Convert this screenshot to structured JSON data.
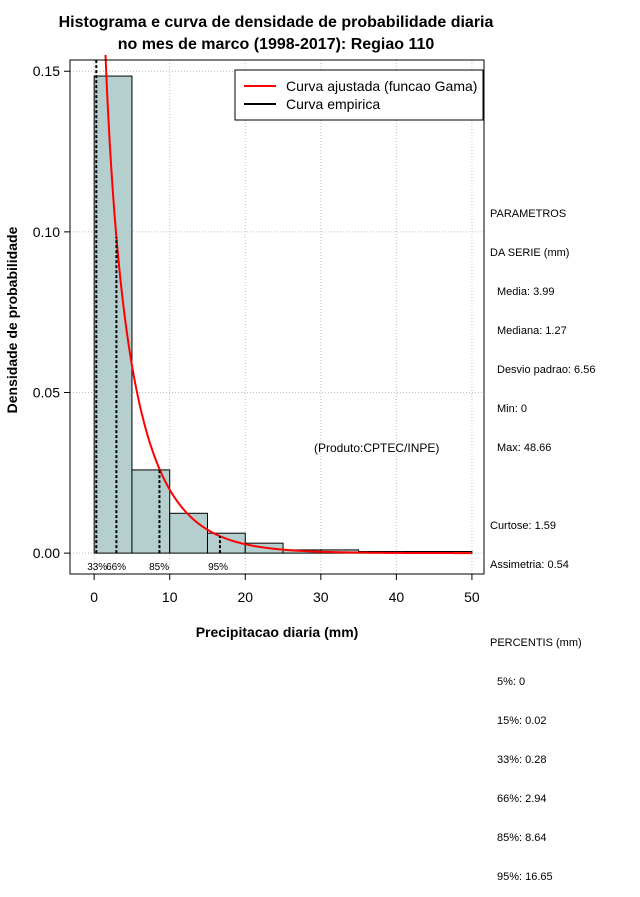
{
  "chart_data": {
    "type": "bar",
    "title_lines": [
      "Histograma e curva de densidade de probabilidade diaria",
      "no mes de marco (1998-2017): Regiao 110"
    ],
    "xlabel": "Precipitacao diaria (mm)",
    "ylabel": "Densidade de probabilidade",
    "xlim": [
      -3.2,
      51.6
    ],
    "ylim": [
      -0.0065,
      0.1535
    ],
    "xticks": [
      0,
      10,
      20,
      30,
      40,
      50
    ],
    "yticks": [
      0.0,
      0.05,
      0.1,
      0.15
    ],
    "ytick_labels": [
      "0.00",
      "0.05",
      "0.10",
      "0.15"
    ],
    "grid": true,
    "bins": [
      {
        "x0": 0,
        "x1": 5,
        "density": 0.1485
      },
      {
        "x0": 5,
        "x1": 10,
        "density": 0.0259
      },
      {
        "x0": 10,
        "x1": 15,
        "density": 0.0124
      },
      {
        "x0": 15,
        "x1": 20,
        "density": 0.0062
      },
      {
        "x0": 20,
        "x1": 25,
        "density": 0.0031
      },
      {
        "x0": 25,
        "x1": 30,
        "density": 0.001
      },
      {
        "x0": 30,
        "x1": 35,
        "density": 0.001
      },
      {
        "x0": 35,
        "x1": 40,
        "density": 0.0005
      },
      {
        "x0": 40,
        "x1": 45,
        "density": 0.0005
      },
      {
        "x0": 45,
        "x1": 50,
        "density": 0.0005
      }
    ],
    "gamma_fit": {
      "shape": 0.7,
      "scale": 5.7
    },
    "percentile_lines": [
      {
        "label": "33%",
        "value": 0.28,
        "label_x": 0.4
      },
      {
        "label": "66%",
        "value": 2.94,
        "label_x": 2.9
      },
      {
        "label": "85%",
        "value": 8.64,
        "label_x": 8.6
      },
      {
        "label": "95%",
        "value": 16.65,
        "label_x": 16.4
      }
    ],
    "legend": {
      "position": "top-right",
      "entries": [
        {
          "label": "Curva ajustada (funcao Gama)",
          "color": "#ff0000"
        },
        {
          "label": "Curva empirica",
          "color": "#000000"
        }
      ]
    },
    "annotation": "(Produto:CPTEC/INPE)",
    "colors": {
      "bar_fill": "#b5cece",
      "fit_curve": "#ff0000",
      "grid": "#bebebe"
    }
  },
  "stats": {
    "header1": "PARAMETROS",
    "header2": "DA SERIE (mm)",
    "media": "Media: 3.99",
    "mediana": "Mediana: 1.27",
    "desvio": "Desvio padrao: 6.56",
    "min": "Min: 0",
    "max": "Max: 48.66",
    "curtose": "Curtose: 1.59",
    "assimetria": "Assimetria: 0.54",
    "percentis_header": "PERCENTIS (mm)",
    "p5": "5%: 0",
    "p15": "15%: 0.02",
    "p33": "33%: 0.28",
    "p66": "66%: 2.94",
    "p85": "85%: 8.64",
    "p95": "95%: 16.65"
  }
}
